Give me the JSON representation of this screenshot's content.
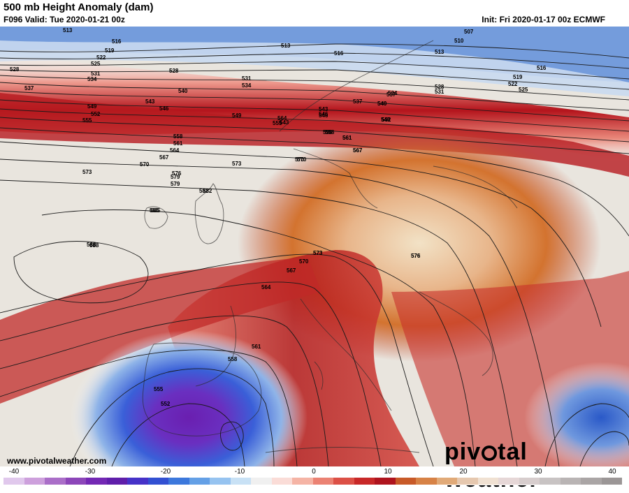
{
  "header": {
    "title": "500 mb Height Anomaly (dam)",
    "valid": "F096 Valid: Tue 2020-01-21 00z",
    "init": "Init: Fri 2020-01-17 00z ECMWF"
  },
  "contour_labels": [
    "513",
    "516",
    "519",
    "522",
    "525",
    "528",
    "531",
    "534",
    "537",
    "540",
    "543",
    "546",
    "549",
    "552",
    "555",
    "558",
    "561",
    "564",
    "567",
    "570",
    "573",
    "576",
    "579",
    "582",
    "585",
    "588",
    "513",
    "516",
    "528",
    "531",
    "534",
    "537",
    "540",
    "543",
    "546",
    "549",
    "552",
    "555",
    "558",
    "561",
    "564",
    "567",
    "570",
    "573",
    "576",
    "579",
    "582",
    "585",
    "588",
    "507",
    "510",
    "513",
    "516",
    "519",
    "522",
    "525",
    "528",
    "531",
    "534",
    "537",
    "540",
    "543",
    "546",
    "549",
    "558",
    "561",
    "567",
    "570",
    "573",
    "576",
    "570",
    "573",
    "567",
    "564",
    "561",
    "558",
    "555",
    "552"
  ],
  "colors": {
    "deep_positive": "#a50f15",
    "positive": "#e2494a",
    "warm": "#d9762d",
    "neutral": "#d6d2c8",
    "negative": "#3a6fd0",
    "deep_negative": "#6a1fb0"
  },
  "colorbar": {
    "ticks": [
      "-40",
      "-30",
      "-20",
      "-10",
      "0",
      "10",
      "20",
      "30",
      "40"
    ]
  },
  "footer": {
    "website": "www.pivotalweather.com",
    "brand_prefix": "piv",
    "brand_suffix": "tal weather"
  }
}
